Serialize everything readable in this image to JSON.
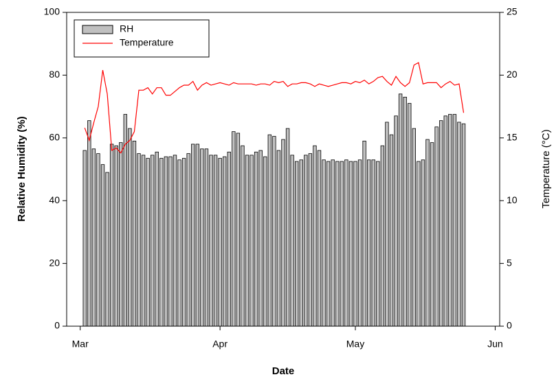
{
  "chart_data": {
    "type": "bar",
    "x_label": "Date",
    "y_label": "Relative Humidity (%)",
    "y2_label": "Temperature (°C)",
    "x": [
      1,
      2,
      3,
      4,
      5,
      6,
      7,
      8,
      9,
      10,
      11,
      12,
      13,
      14,
      15,
      16,
      17,
      18,
      19,
      20,
      21,
      22,
      23,
      24,
      25,
      26,
      27,
      28,
      29,
      30,
      31,
      32,
      33,
      34,
      35,
      36,
      37,
      38,
      39,
      40,
      41,
      42,
      43,
      44,
      45,
      46,
      47,
      48,
      49,
      50,
      51,
      52,
      53,
      54,
      55,
      56,
      57,
      58,
      59,
      60,
      61,
      62,
      63,
      64,
      65,
      66,
      67,
      68,
      69,
      70,
      71,
      72,
      73,
      74,
      75,
      76,
      77,
      78,
      79,
      80,
      81,
      82,
      83,
      84,
      85
    ],
    "series": [
      {
        "name": "RH",
        "type": "bar",
        "color": "#c0c0c0",
        "values": [
          56,
          65.5,
          56.5,
          55,
          51.5,
          49,
          58,
          57.5,
          58.5,
          67.5,
          63,
          59,
          55,
          54.5,
          53.5,
          54.5,
          55.5,
          53.5,
          54,
          54,
          54.5,
          53,
          53.5,
          55,
          58,
          58,
          56.5,
          56.5,
          54.5,
          54.5,
          53.5,
          54,
          55.5,
          62,
          61.5,
          57.5,
          54.5,
          54.5,
          55.5,
          56,
          54,
          61,
          60.5,
          56,
          59.5,
          63,
          54.5,
          52.5,
          53,
          54.5,
          55,
          57.5,
          56,
          53,
          52.5,
          53,
          52.5,
          52.5,
          53,
          52.5,
          52.5,
          53,
          59,
          53,
          53,
          52.5,
          57.5,
          65,
          61,
          67,
          74,
          73,
          71,
          63,
          52.5,
          53,
          59.5,
          58.5,
          63.5,
          65.5,
          67,
          67.5,
          67.5,
          65,
          64.5
        ]
      },
      {
        "name": "Temperature",
        "type": "line",
        "axis": "y2",
        "color": "#ff0000",
        "values": [
          15.8,
          14.8,
          16.2,
          17.5,
          20.4,
          18.5,
          14,
          14.2,
          13.8,
          14.5,
          14.8,
          15.5,
          18.8,
          18.8,
          19,
          18.5,
          19,
          19,
          18.4,
          18.4,
          18.7,
          19,
          19.2,
          19.2,
          19.5,
          18.8,
          19.2,
          19.4,
          19.2,
          19.3,
          19.4,
          19.3,
          19.2,
          19.4,
          19.3,
          19.3,
          19.3,
          19.3,
          19.2,
          19.3,
          19.3,
          19.2,
          19.5,
          19.4,
          19.5,
          19.1,
          19.3,
          19.3,
          19.4,
          19.4,
          19.3,
          19.1,
          19.3,
          19.2,
          19.1,
          19.2,
          19.3,
          19.4,
          19.4,
          19.3,
          19.5,
          19.4,
          19.6,
          19.3,
          19.5,
          19.8,
          19.9,
          19.5,
          19.2,
          19.9,
          19.4,
          19.1,
          19.4,
          20.8,
          21,
          19.3,
          19.4,
          19.4,
          19.4,
          19,
          19.3,
          19.5,
          19.2,
          19.3,
          17
        ]
      }
    ],
    "xlim": [
      -3,
      93
    ],
    "xticks": [
      {
        "value": 0,
        "label": "Mar"
      },
      {
        "value": 31,
        "label": "Apr"
      },
      {
        "value": 61,
        "label": "May"
      },
      {
        "value": 92,
        "label": "Jun"
      }
    ],
    "ylim": [
      0,
      100
    ],
    "yticks": [
      0,
      20,
      40,
      60,
      80,
      100
    ],
    "y2lim": [
      0,
      25
    ],
    "y2ticks": [
      0,
      5,
      10,
      15,
      20,
      25
    ],
    "legend": "upper-left"
  }
}
